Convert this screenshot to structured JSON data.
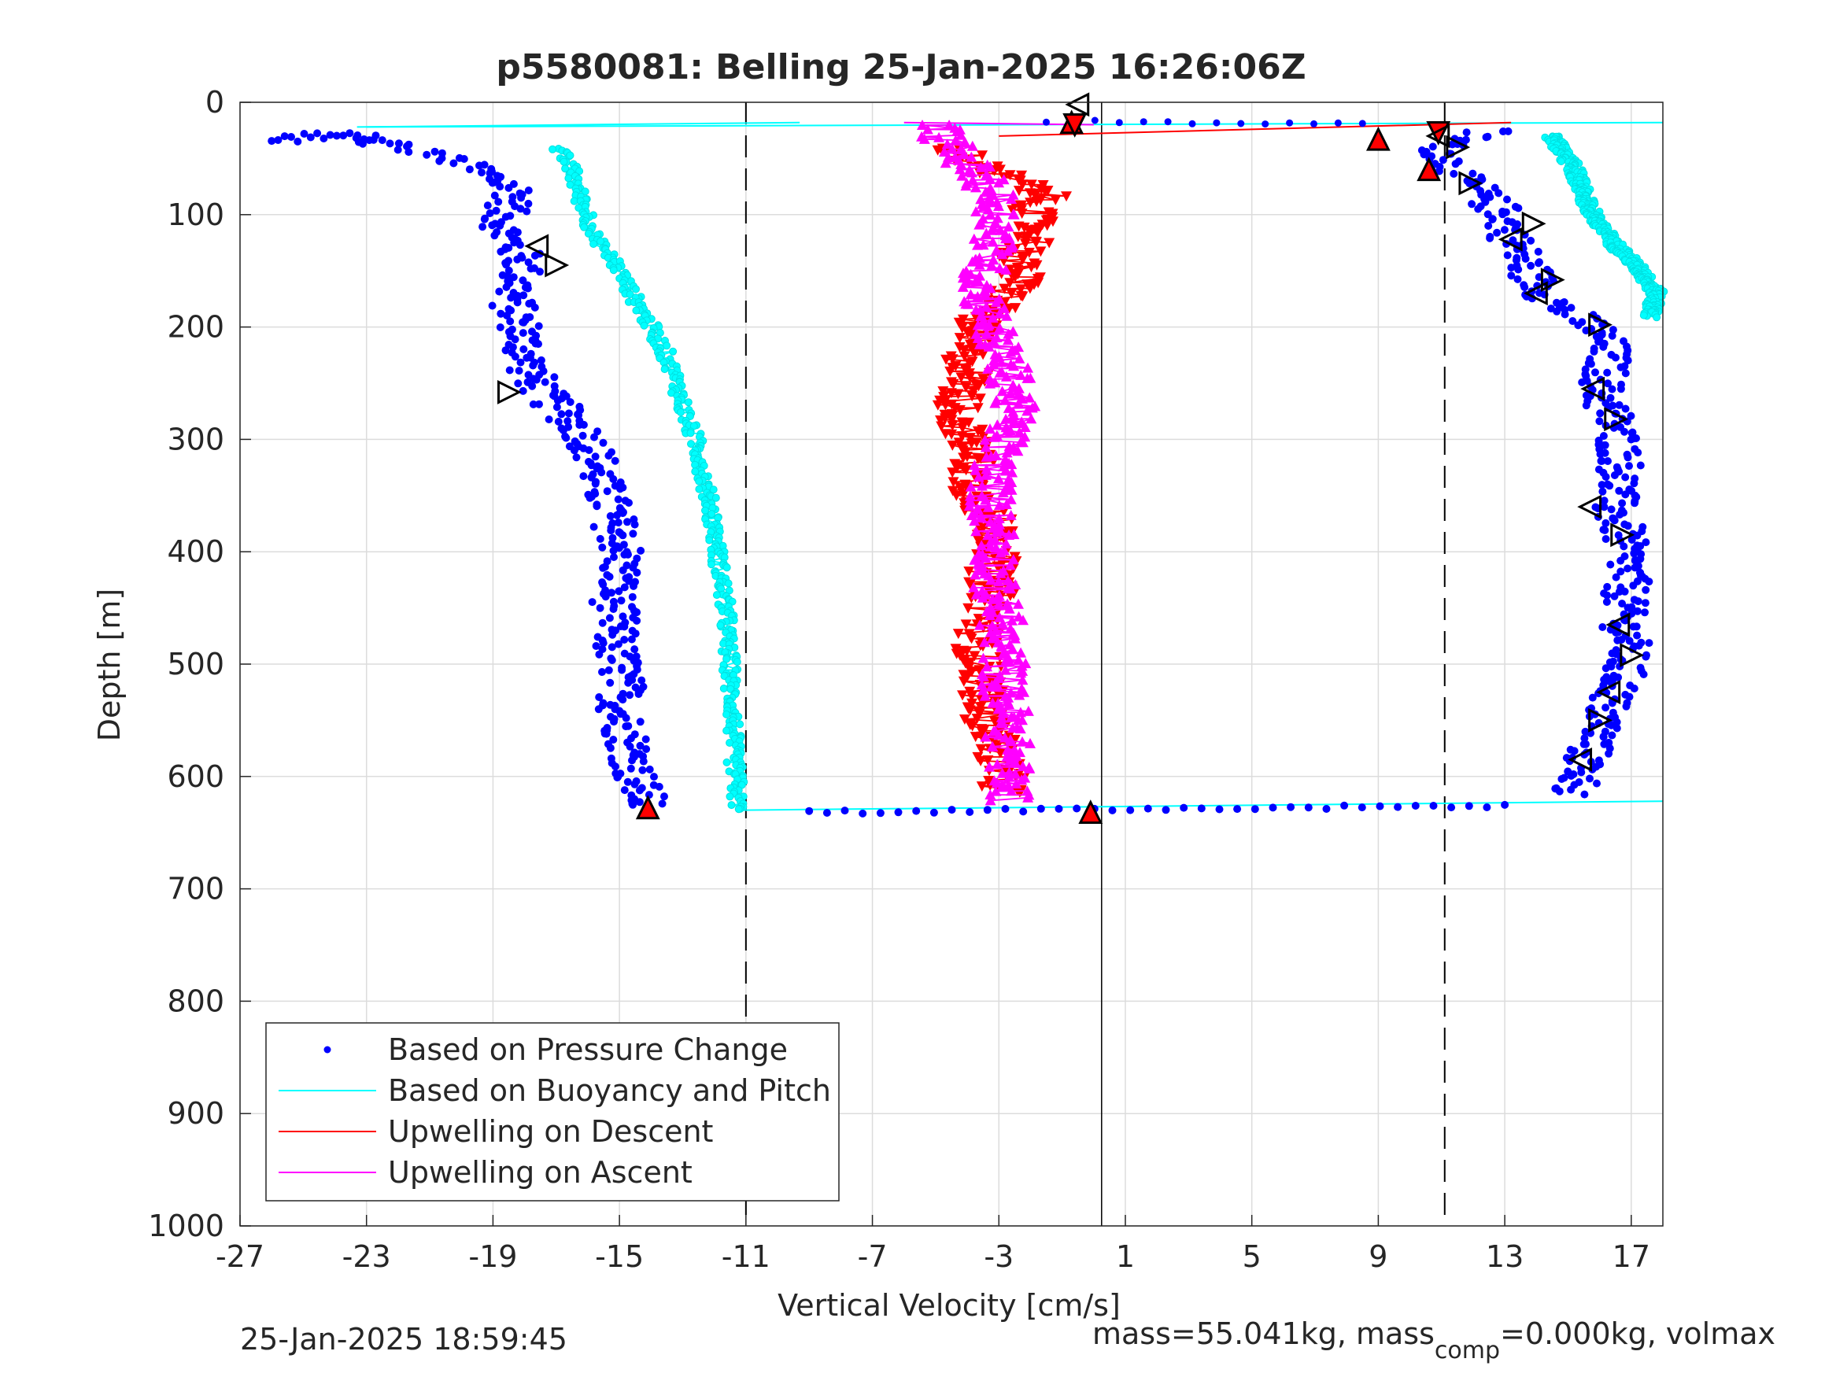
{
  "chart_data": {
    "type": "scatter",
    "title": "p5580081: Belling 25-Jan-2025 16:26:06Z",
    "xlabel": "Vertical Velocity [cm/s]",
    "ylabel": "Depth [m]",
    "xlim": [
      -27,
      18
    ],
    "ylim": [
      0,
      1000
    ],
    "y_reversed": true,
    "grid": true,
    "xticks": [
      -27,
      -23,
      -19,
      -15,
      -11,
      -7,
      -3,
      1,
      5,
      9,
      13,
      17
    ],
    "yticks": [
      0,
      100,
      200,
      300,
      400,
      500,
      600,
      700,
      800,
      900,
      1000
    ],
    "xtick_labels": [
      "-27",
      "-23",
      "-19",
      "-15",
      "-11",
      "-7",
      "-3",
      "1",
      "5",
      "9",
      "13",
      "17"
    ],
    "ytick_labels": [
      "0",
      "100",
      "200",
      "300",
      "400",
      "500",
      "600",
      "700",
      "800",
      "900",
      "1000"
    ],
    "vlines_dashed": [
      -11,
      11.1
    ],
    "vline_solid": 0,
    "legend_position": "bottom-left",
    "legend": [
      {
        "label": "Based on Pressure Change",
        "style": "dot",
        "color": "#0000ff"
      },
      {
        "label": "Based on Buoyancy and Pitch",
        "style": "line",
        "color": "#00ffff"
      },
      {
        "label": "Upwelling on Descent",
        "style": "line",
        "color": "#ff0000"
      },
      {
        "label": "Upwelling on Ascent",
        "style": "line",
        "color": "#ff00ff"
      }
    ],
    "series": [
      {
        "name": "Based on Pressure Change",
        "role": "descent-pressure",
        "color": "#0000ff",
        "depth": [
          30,
          45,
          60,
          80,
          100,
          120,
          140,
          160,
          180,
          200,
          220,
          240,
          260,
          280,
          300,
          320,
          340,
          360,
          380,
          400,
          420,
          440,
          460,
          480,
          500,
          520,
          540,
          560,
          580,
          600,
          615,
          628
        ],
        "velocity": [
          -23.5,
          -21,
          -19.5,
          -18.2,
          -18.7,
          -18.6,
          -18.0,
          -18.2,
          -18.4,
          -18.1,
          -18.0,
          -17.8,
          -17.4,
          -16.6,
          -16.0,
          -15.7,
          -15.6,
          -15.3,
          -15.1,
          -14.9,
          -15.0,
          -15.2,
          -15.1,
          -15.2,
          -15.0,
          -14.9,
          -15.0,
          -14.8,
          -14.6,
          -14.5,
          -14.3,
          -14.1
        ]
      },
      {
        "name": "Based on Pressure Change",
        "role": "ascent-pressure",
        "color": "#0000ff",
        "depth": [
          25,
          40,
          60,
          80,
          100,
          120,
          140,
          160,
          180,
          200,
          220,
          240,
          260,
          280,
          300,
          320,
          340,
          360,
          380,
          400,
          420,
          440,
          460,
          480,
          500,
          520,
          540,
          560,
          580,
          600,
          615
        ],
        "velocity": [
          12.5,
          11.0,
          11.3,
          12.2,
          13.0,
          13.2,
          13.6,
          14.0,
          14.6,
          15.8,
          16.3,
          16.2,
          16.0,
          16.4,
          16.6,
          16.7,
          16.6,
          16.4,
          16.7,
          16.8,
          16.9,
          16.8,
          16.7,
          16.9,
          16.8,
          16.6,
          16.2,
          16.0,
          15.6,
          15.4,
          15.2
        ]
      },
      {
        "name": "Based on Buoyancy and Pitch",
        "role": "descent-model",
        "color": "#00ffff",
        "depth": [
          40,
          60,
          80,
          100,
          120,
          140,
          160,
          180,
          200,
          220,
          240,
          260,
          280,
          300,
          320,
          340,
          360,
          380,
          400,
          420,
          440,
          460,
          480,
          500,
          520,
          540,
          560,
          580,
          600,
          620,
          630
        ],
        "velocity": [
          -17,
          -16.5,
          -16.3,
          -16,
          -15.8,
          -15.2,
          -14.8,
          -14.4,
          -14.0,
          -13.6,
          -13.3,
          -13.1,
          -12.9,
          -12.6,
          -12.4,
          -12.3,
          -12.1,
          -12.0,
          -11.9,
          -11.8,
          -11.7,
          -11.6,
          -11.6,
          -11.5,
          -11.5,
          -11.4,
          -11.4,
          -11.4,
          -11.3,
          -11.3,
          -11.2
        ]
      },
      {
        "name": "Based on Buoyancy and Pitch",
        "role": "ascent-model",
        "color": "#00ffff",
        "depth": [
          30,
          60,
          90,
          110,
          130,
          150,
          170,
          190
        ],
        "velocity": [
          14.5,
          15.2,
          15.6,
          16.0,
          16.6,
          17.3,
          17.8,
          17.6
        ]
      },
      {
        "name": "Upwelling on Descent",
        "color": "#ff0000",
        "depth": [
          40,
          60,
          80,
          100,
          120,
          140,
          160,
          180,
          200,
          220,
          240,
          260,
          280,
          300,
          320,
          340,
          360,
          380,
          400,
          420,
          440,
          460,
          480,
          500,
          520,
          540,
          560,
          580,
          600,
          615
        ],
        "velocity": [
          -4.5,
          -3.5,
          -1.5,
          -2,
          -1.8,
          -2.5,
          -2.3,
          -3.0,
          -3.8,
          -4.1,
          -3.9,
          -4.2,
          -4.3,
          -4.0,
          -3.8,
          -3.9,
          -3.5,
          -3.1,
          -3.0,
          -3.3,
          -3.2,
          -3.4,
          -3.7,
          -3.6,
          -3.4,
          -3.6,
          -3.2,
          -3.0,
          -2.9,
          -2.8
        ]
      },
      {
        "name": "Upwelling on Ascent",
        "color": "#ff00ff",
        "depth": [
          20,
          40,
          60,
          80,
          100,
          120,
          140,
          160,
          180,
          200,
          220,
          240,
          260,
          280,
          300,
          320,
          340,
          360,
          380,
          400,
          420,
          440,
          460,
          480,
          500,
          520,
          540,
          560,
          580,
          600,
          620
        ],
        "velocity": [
          -5,
          -4.5,
          -3.8,
          -3.2,
          -3.0,
          -3.1,
          -3.3,
          -3.6,
          -3.4,
          -3.2,
          -3.0,
          -2.7,
          -2.5,
          -2.6,
          -2.8,
          -3.1,
          -3.2,
          -3.3,
          -3.1,
          -3.0,
          -3.2,
          -3.1,
          -2.9,
          -3.0,
          -2.8,
          -2.9,
          -2.7,
          -2.8,
          -2.6,
          -2.7,
          -2.6
        ]
      }
    ],
    "markers": [
      {
        "type": "up-triangle-red",
        "points": [
          {
            "x": -0.7,
            "y": 18
          },
          {
            "x": 9,
            "y": 33
          },
          {
            "x": 10.6,
            "y": 60
          },
          {
            "x": -14.1,
            "y": 628
          },
          {
            "x": -0.1,
            "y": 632
          }
        ]
      },
      {
        "type": "down-triangle-red",
        "points": [
          {
            "x": -0.6,
            "y": 20
          },
          {
            "x": 10.9,
            "y": 27
          }
        ]
      },
      {
        "type": "left-triangle-open",
        "points": [
          {
            "x": -17.6,
            "y": 128
          },
          {
            "x": -0.5,
            "y": 2
          },
          {
            "x": 10.9,
            "y": 30
          },
          {
            "x": 13.2,
            "y": 122
          },
          {
            "x": 14.0,
            "y": 170
          },
          {
            "x": 15.8,
            "y": 255
          },
          {
            "x": 15.7,
            "y": 360
          },
          {
            "x": 16.6,
            "y": 465
          },
          {
            "x": 16.3,
            "y": 525
          },
          {
            "x": 15.4,
            "y": 585
          }
        ]
      },
      {
        "type": "right-triangle-open",
        "points": [
          {
            "x": -18.5,
            "y": 258
          },
          {
            "x": -17.0,
            "y": 145
          },
          {
            "x": 11.9,
            "y": 72
          },
          {
            "x": 11.5,
            "y": 40
          },
          {
            "x": 13.9,
            "y": 108
          },
          {
            "x": 14.5,
            "y": 158
          },
          {
            "x": 16.0,
            "y": 198
          },
          {
            "x": 16.5,
            "y": 282
          },
          {
            "x": 16.7,
            "y": 385
          },
          {
            "x": 17.0,
            "y": 492
          },
          {
            "x": 16.0,
            "y": 550
          }
        ]
      }
    ],
    "top_connectors": [
      {
        "color": "#00ffff",
        "from": {
          "x": -23.3,
          "y": 22
        },
        "to": {
          "x": -9.3,
          "y": 18
        }
      },
      {
        "color": "#00ffff",
        "from": {
          "x": -23.0,
          "y": 22
        },
        "to": {
          "x": 18.0,
          "y": 18
        }
      },
      {
        "color": "#ff0000",
        "from": {
          "x": -3.0,
          "y": 30
        },
        "to": {
          "x": 13.2,
          "y": 18
        }
      },
      {
        "color": "#ff00ff",
        "from": {
          "x": -6.0,
          "y": 18
        },
        "to": {
          "x": 0.0,
          "y": 20
        }
      },
      {
        "color": "#00ffff",
        "from": {
          "x": -11.1,
          "y": 630
        },
        "to": {
          "x": 18.0,
          "y": 622
        }
      }
    ]
  },
  "footer": {
    "timestamp": "25-Jan-2025 18:59:45",
    "mass_text_a": "mass=55.041kg, mass",
    "mass_sub": "comp",
    "mass_text_b": "=0.000kg, volmax"
  }
}
